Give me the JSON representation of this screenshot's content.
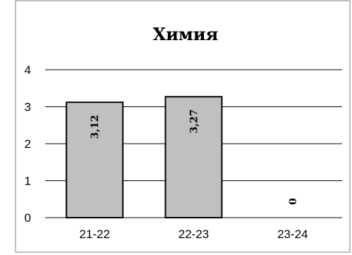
{
  "chart_data": {
    "type": "bar",
    "title": "Химия",
    "categories": [
      "21-22",
      "22-23",
      "23-24"
    ],
    "values": [
      3.12,
      3.27,
      0
    ],
    "data_labels": [
      "3,12",
      "3,27",
      "0"
    ],
    "y_ticks": [
      "0",
      "1",
      "2",
      "3",
      "4"
    ],
    "ylim": [
      0,
      4
    ],
    "xlabel": "",
    "ylabel": "",
    "grid": true,
    "bar_color": "#c0c0c0",
    "bar_edge_color": "#000000",
    "data_label_orientation": "vertical"
  }
}
